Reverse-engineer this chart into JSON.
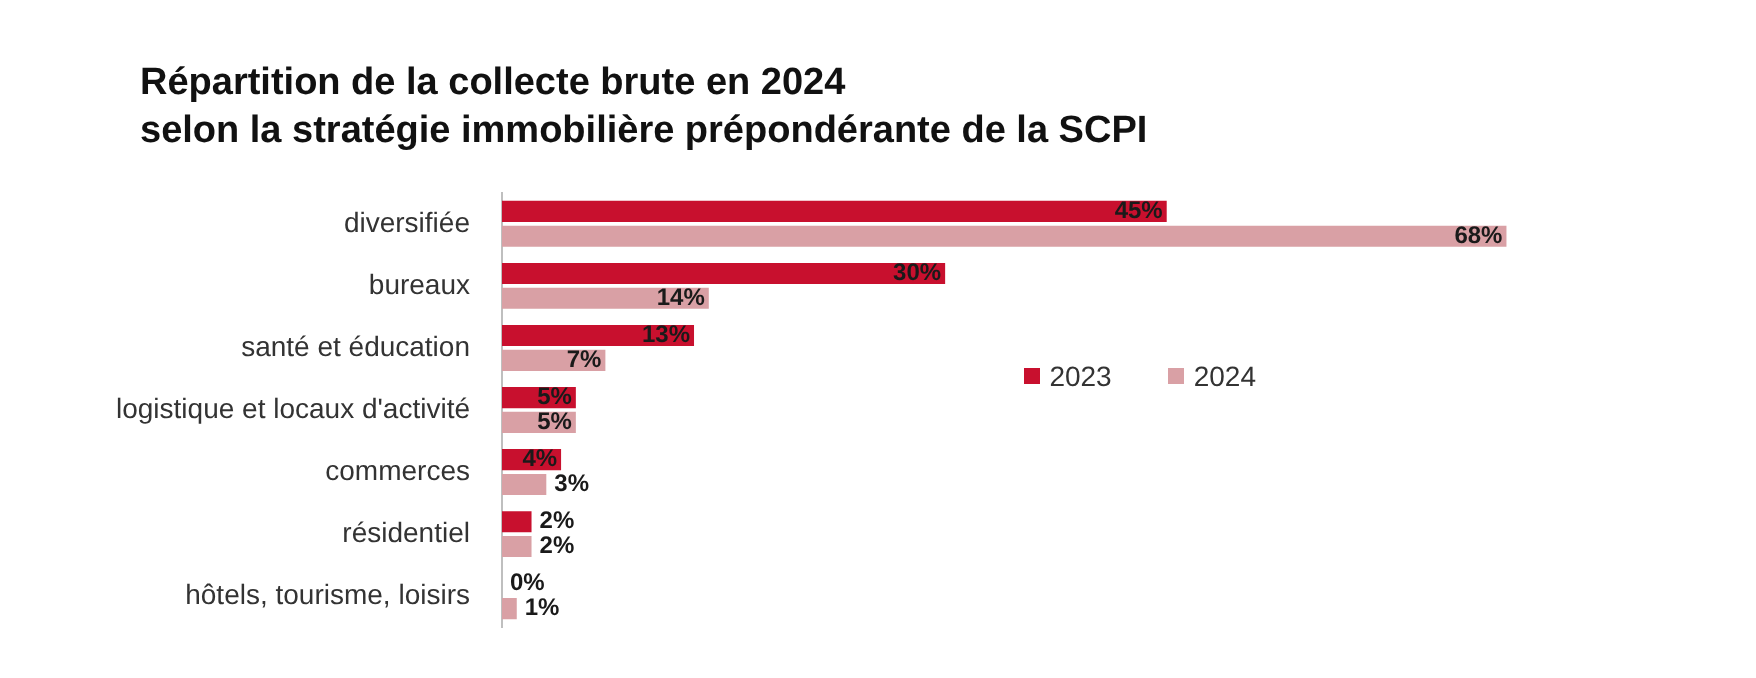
{
  "chart_data": {
    "type": "bar",
    "orientation": "horizontal",
    "title": "Répartition de la collecte brute en 2024\nselon la stratégie immobilière prépondérante de la SCPI",
    "categories": [
      "diversifiée",
      "bureaux",
      "santé et éducation",
      "logistique et locaux d'activité",
      "commerces",
      "résidentiel",
      "hôtels, tourisme, loisirs"
    ],
    "series": [
      {
        "name": "2023",
        "color": "#c8102e",
        "values": [
          45,
          30,
          13,
          5,
          4,
          2,
          0
        ],
        "value_labels": [
          "45%",
          "30%",
          "13%",
          "5%",
          "4%",
          "2%",
          "0%"
        ]
      },
      {
        "name": "2024",
        "color": "#d9a0a5",
        "values": [
          68,
          14,
          7,
          5,
          3,
          2,
          1
        ],
        "value_labels": [
          "68%",
          "14%",
          "7%",
          "5%",
          "3%",
          "2%",
          "1%"
        ]
      }
    ],
    "legend": "right"
  }
}
